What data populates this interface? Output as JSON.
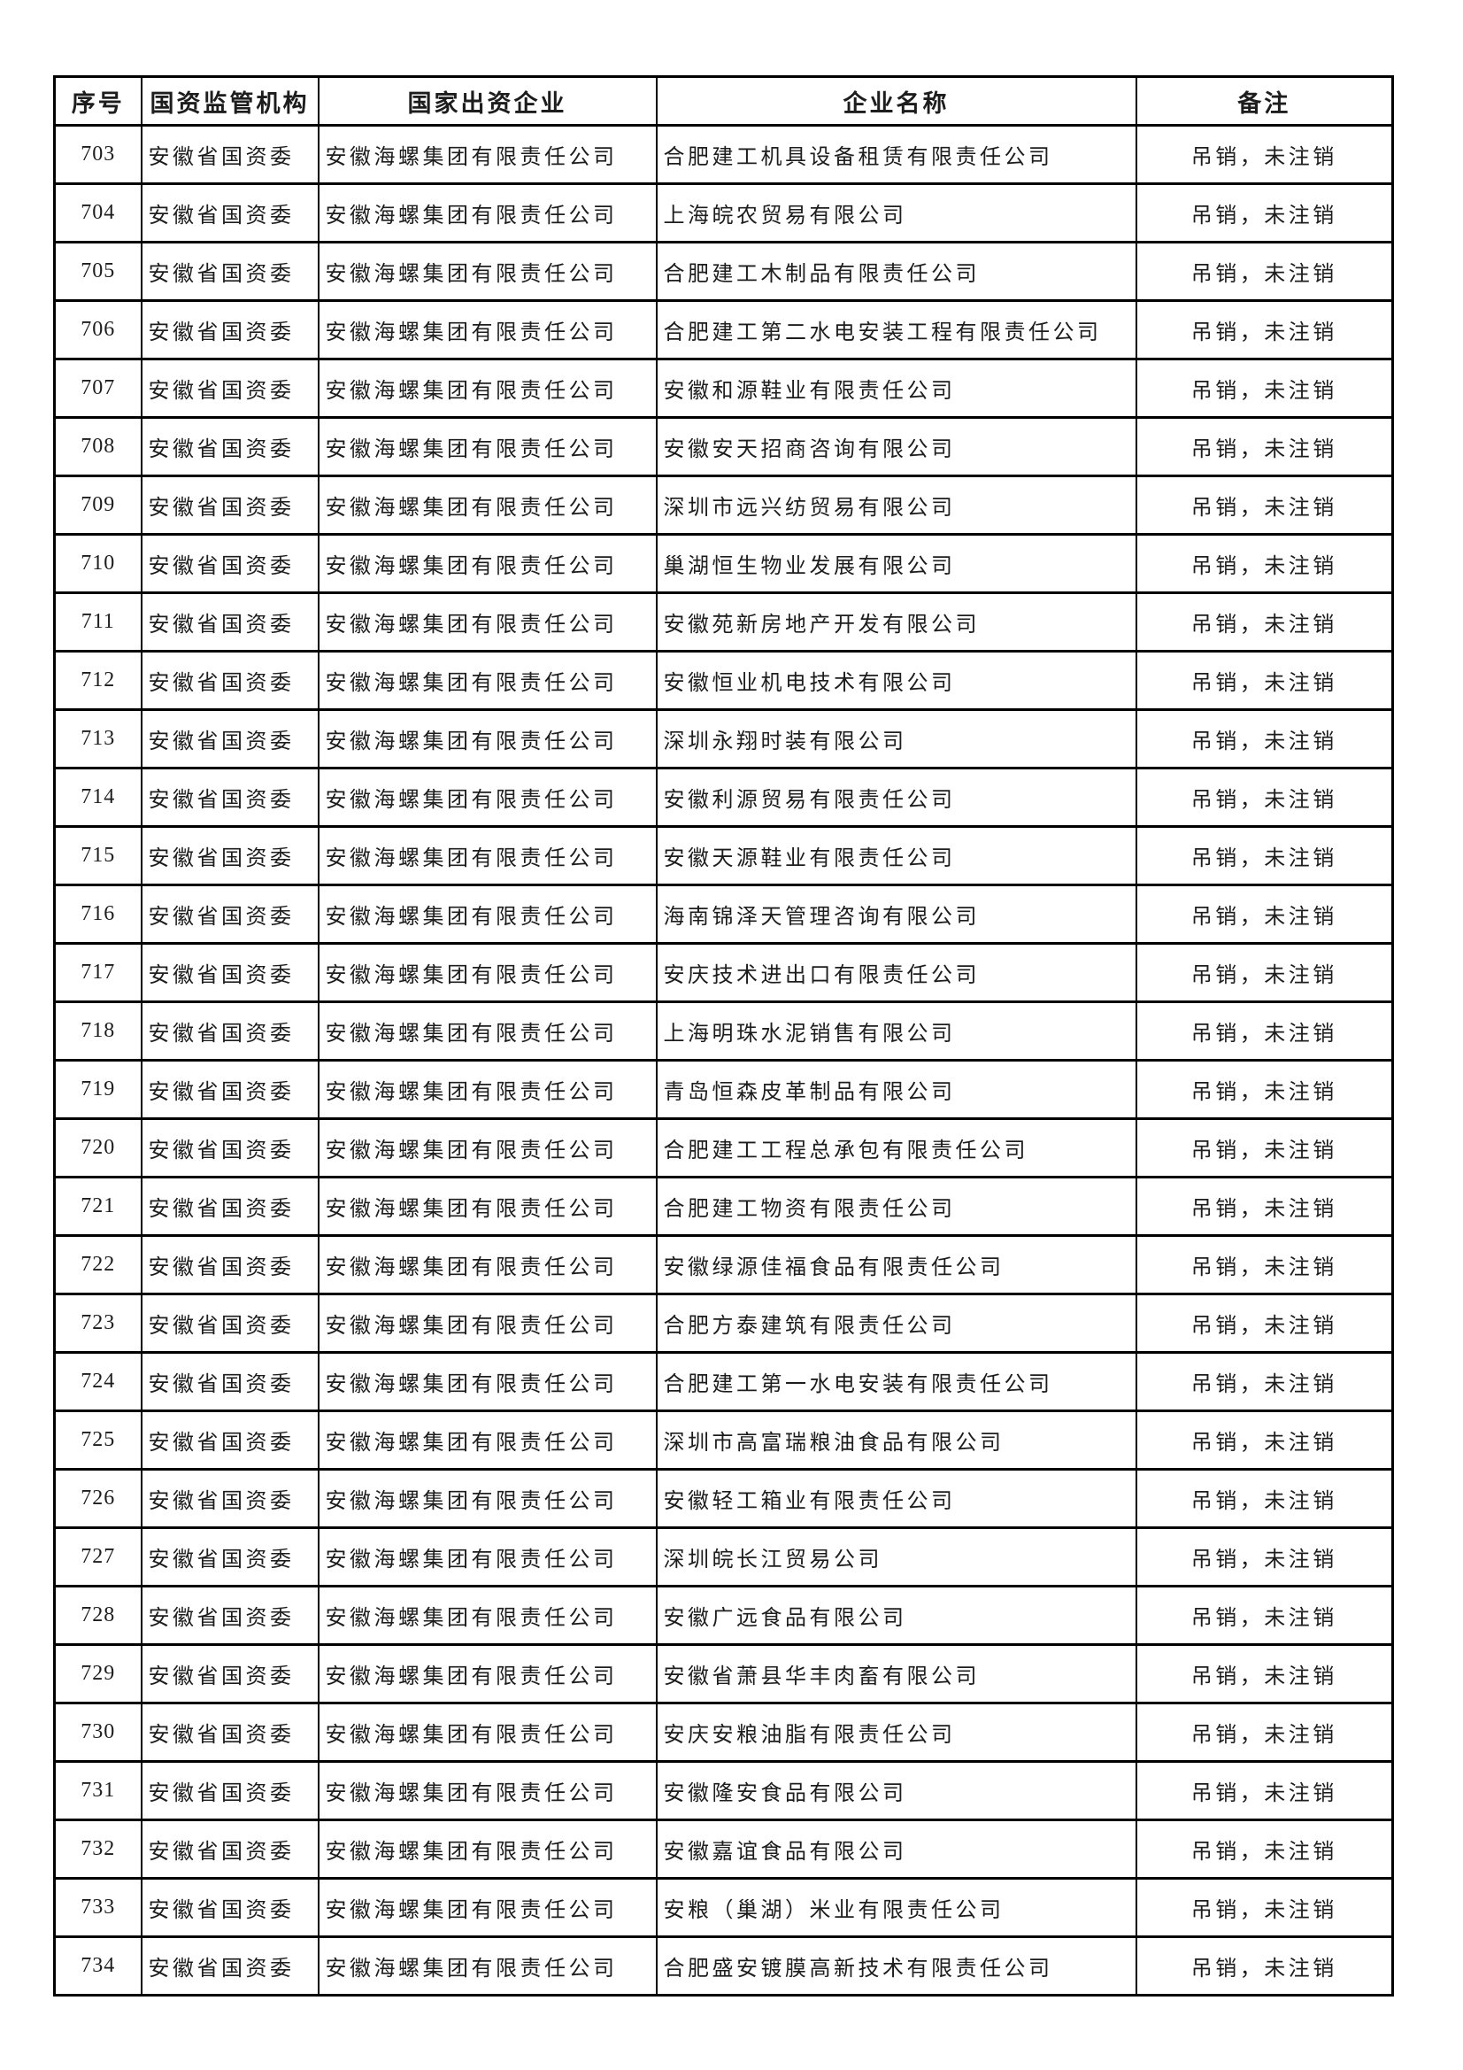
{
  "table": {
    "headers": [
      "序号",
      "国资监管机构",
      "国家出资企业",
      "企业名称",
      "备注"
    ],
    "rows": [
      {
        "seq": "703",
        "regulator": "安徽省国资委",
        "enterprise": "安徽海螺集团有限责任公司",
        "company": "合肥建工机具设备租赁有限责任公司",
        "remark": "吊销，未注销"
      },
      {
        "seq": "704",
        "regulator": "安徽省国资委",
        "enterprise": "安徽海螺集团有限责任公司",
        "company": "上海皖农贸易有限公司",
        "remark": "吊销，未注销"
      },
      {
        "seq": "705",
        "regulator": "安徽省国资委",
        "enterprise": "安徽海螺集团有限责任公司",
        "company": "合肥建工木制品有限责任公司",
        "remark": "吊销，未注销"
      },
      {
        "seq": "706",
        "regulator": "安徽省国资委",
        "enterprise": "安徽海螺集团有限责任公司",
        "company": "合肥建工第二水电安装工程有限责任公司",
        "remark": "吊销，未注销"
      },
      {
        "seq": "707",
        "regulator": "安徽省国资委",
        "enterprise": "安徽海螺集团有限责任公司",
        "company": "安徽和源鞋业有限责任公司",
        "remark": "吊销，未注销"
      },
      {
        "seq": "708",
        "regulator": "安徽省国资委",
        "enterprise": "安徽海螺集团有限责任公司",
        "company": "安徽安天招商咨询有限公司",
        "remark": "吊销，未注销"
      },
      {
        "seq": "709",
        "regulator": "安徽省国资委",
        "enterprise": "安徽海螺集团有限责任公司",
        "company": "深圳市远兴纺贸易有限公司",
        "remark": "吊销，未注销"
      },
      {
        "seq": "710",
        "regulator": "安徽省国资委",
        "enterprise": "安徽海螺集团有限责任公司",
        "company": "巢湖恒生物业发展有限公司",
        "remark": "吊销，未注销"
      },
      {
        "seq": "711",
        "regulator": "安徽省国资委",
        "enterprise": "安徽海螺集团有限责任公司",
        "company": "安徽苑新房地产开发有限公司",
        "remark": "吊销，未注销"
      },
      {
        "seq": "712",
        "regulator": "安徽省国资委",
        "enterprise": "安徽海螺集团有限责任公司",
        "company": "安徽恒业机电技术有限公司",
        "remark": "吊销，未注销"
      },
      {
        "seq": "713",
        "regulator": "安徽省国资委",
        "enterprise": "安徽海螺集团有限责任公司",
        "company": "深圳永翔时装有限公司",
        "remark": "吊销，未注销"
      },
      {
        "seq": "714",
        "regulator": "安徽省国资委",
        "enterprise": "安徽海螺集团有限责任公司",
        "company": "安徽利源贸易有限责任公司",
        "remark": "吊销，未注销"
      },
      {
        "seq": "715",
        "regulator": "安徽省国资委",
        "enterprise": "安徽海螺集团有限责任公司",
        "company": "安徽天源鞋业有限责任公司",
        "remark": "吊销，未注销"
      },
      {
        "seq": "716",
        "regulator": "安徽省国资委",
        "enterprise": "安徽海螺集团有限责任公司",
        "company": "海南锦泽天管理咨询有限公司",
        "remark": "吊销，未注销"
      },
      {
        "seq": "717",
        "regulator": "安徽省国资委",
        "enterprise": "安徽海螺集团有限责任公司",
        "company": "安庆技术进出口有限责任公司",
        "remark": "吊销，未注销"
      },
      {
        "seq": "718",
        "regulator": "安徽省国资委",
        "enterprise": "安徽海螺集团有限责任公司",
        "company": "上海明珠水泥销售有限公司",
        "remark": "吊销，未注销"
      },
      {
        "seq": "719",
        "regulator": "安徽省国资委",
        "enterprise": "安徽海螺集团有限责任公司",
        "company": "青岛恒森皮革制品有限公司",
        "remark": "吊销，未注销"
      },
      {
        "seq": "720",
        "regulator": "安徽省国资委",
        "enterprise": "安徽海螺集团有限责任公司",
        "company": "合肥建工工程总承包有限责任公司",
        "remark": "吊销，未注销"
      },
      {
        "seq": "721",
        "regulator": "安徽省国资委",
        "enterprise": "安徽海螺集团有限责任公司",
        "company": "合肥建工物资有限责任公司",
        "remark": "吊销，未注销"
      },
      {
        "seq": "722",
        "regulator": "安徽省国资委",
        "enterprise": "安徽海螺集团有限责任公司",
        "company": "安徽绿源佳福食品有限责任公司",
        "remark": "吊销，未注销"
      },
      {
        "seq": "723",
        "regulator": "安徽省国资委",
        "enterprise": "安徽海螺集团有限责任公司",
        "company": "合肥方泰建筑有限责任公司",
        "remark": "吊销，未注销"
      },
      {
        "seq": "724",
        "regulator": "安徽省国资委",
        "enterprise": "安徽海螺集团有限责任公司",
        "company": "合肥建工第一水电安装有限责任公司",
        "remark": "吊销，未注销"
      },
      {
        "seq": "725",
        "regulator": "安徽省国资委",
        "enterprise": "安徽海螺集团有限责任公司",
        "company": "深圳市高富瑞粮油食品有限公司",
        "remark": "吊销，未注销"
      },
      {
        "seq": "726",
        "regulator": "安徽省国资委",
        "enterprise": "安徽海螺集团有限责任公司",
        "company": "安徽轻工箱业有限责任公司",
        "remark": "吊销，未注销"
      },
      {
        "seq": "727",
        "regulator": "安徽省国资委",
        "enterprise": "安徽海螺集团有限责任公司",
        "company": "深圳皖长江贸易公司",
        "remark": "吊销，未注销"
      },
      {
        "seq": "728",
        "regulator": "安徽省国资委",
        "enterprise": "安徽海螺集团有限责任公司",
        "company": "安徽广远食品有限公司",
        "remark": "吊销，未注销"
      },
      {
        "seq": "729",
        "regulator": "安徽省国资委",
        "enterprise": "安徽海螺集团有限责任公司",
        "company": "安徽省萧县华丰肉畜有限公司",
        "remark": "吊销，未注销"
      },
      {
        "seq": "730",
        "regulator": "安徽省国资委",
        "enterprise": "安徽海螺集团有限责任公司",
        "company": "安庆安粮油脂有限责任公司",
        "remark": "吊销，未注销"
      },
      {
        "seq": "731",
        "regulator": "安徽省国资委",
        "enterprise": "安徽海螺集团有限责任公司",
        "company": "安徽隆安食品有限公司",
        "remark": "吊销，未注销"
      },
      {
        "seq": "732",
        "regulator": "安徽省国资委",
        "enterprise": "安徽海螺集团有限责任公司",
        "company": "安徽嘉谊食品有限公司",
        "remark": "吊销，未注销"
      },
      {
        "seq": "733",
        "regulator": "安徽省国资委",
        "enterprise": "安徽海螺集团有限责任公司",
        "company": "安粮（巢湖）米业有限责任公司",
        "remark": "吊销，未注销"
      },
      {
        "seq": "734",
        "regulator": "安徽省国资委",
        "enterprise": "安徽海螺集团有限责任公司",
        "company": "合肥盛安镀膜高新技术有限责任公司",
        "remark": "吊销，未注销"
      }
    ]
  }
}
